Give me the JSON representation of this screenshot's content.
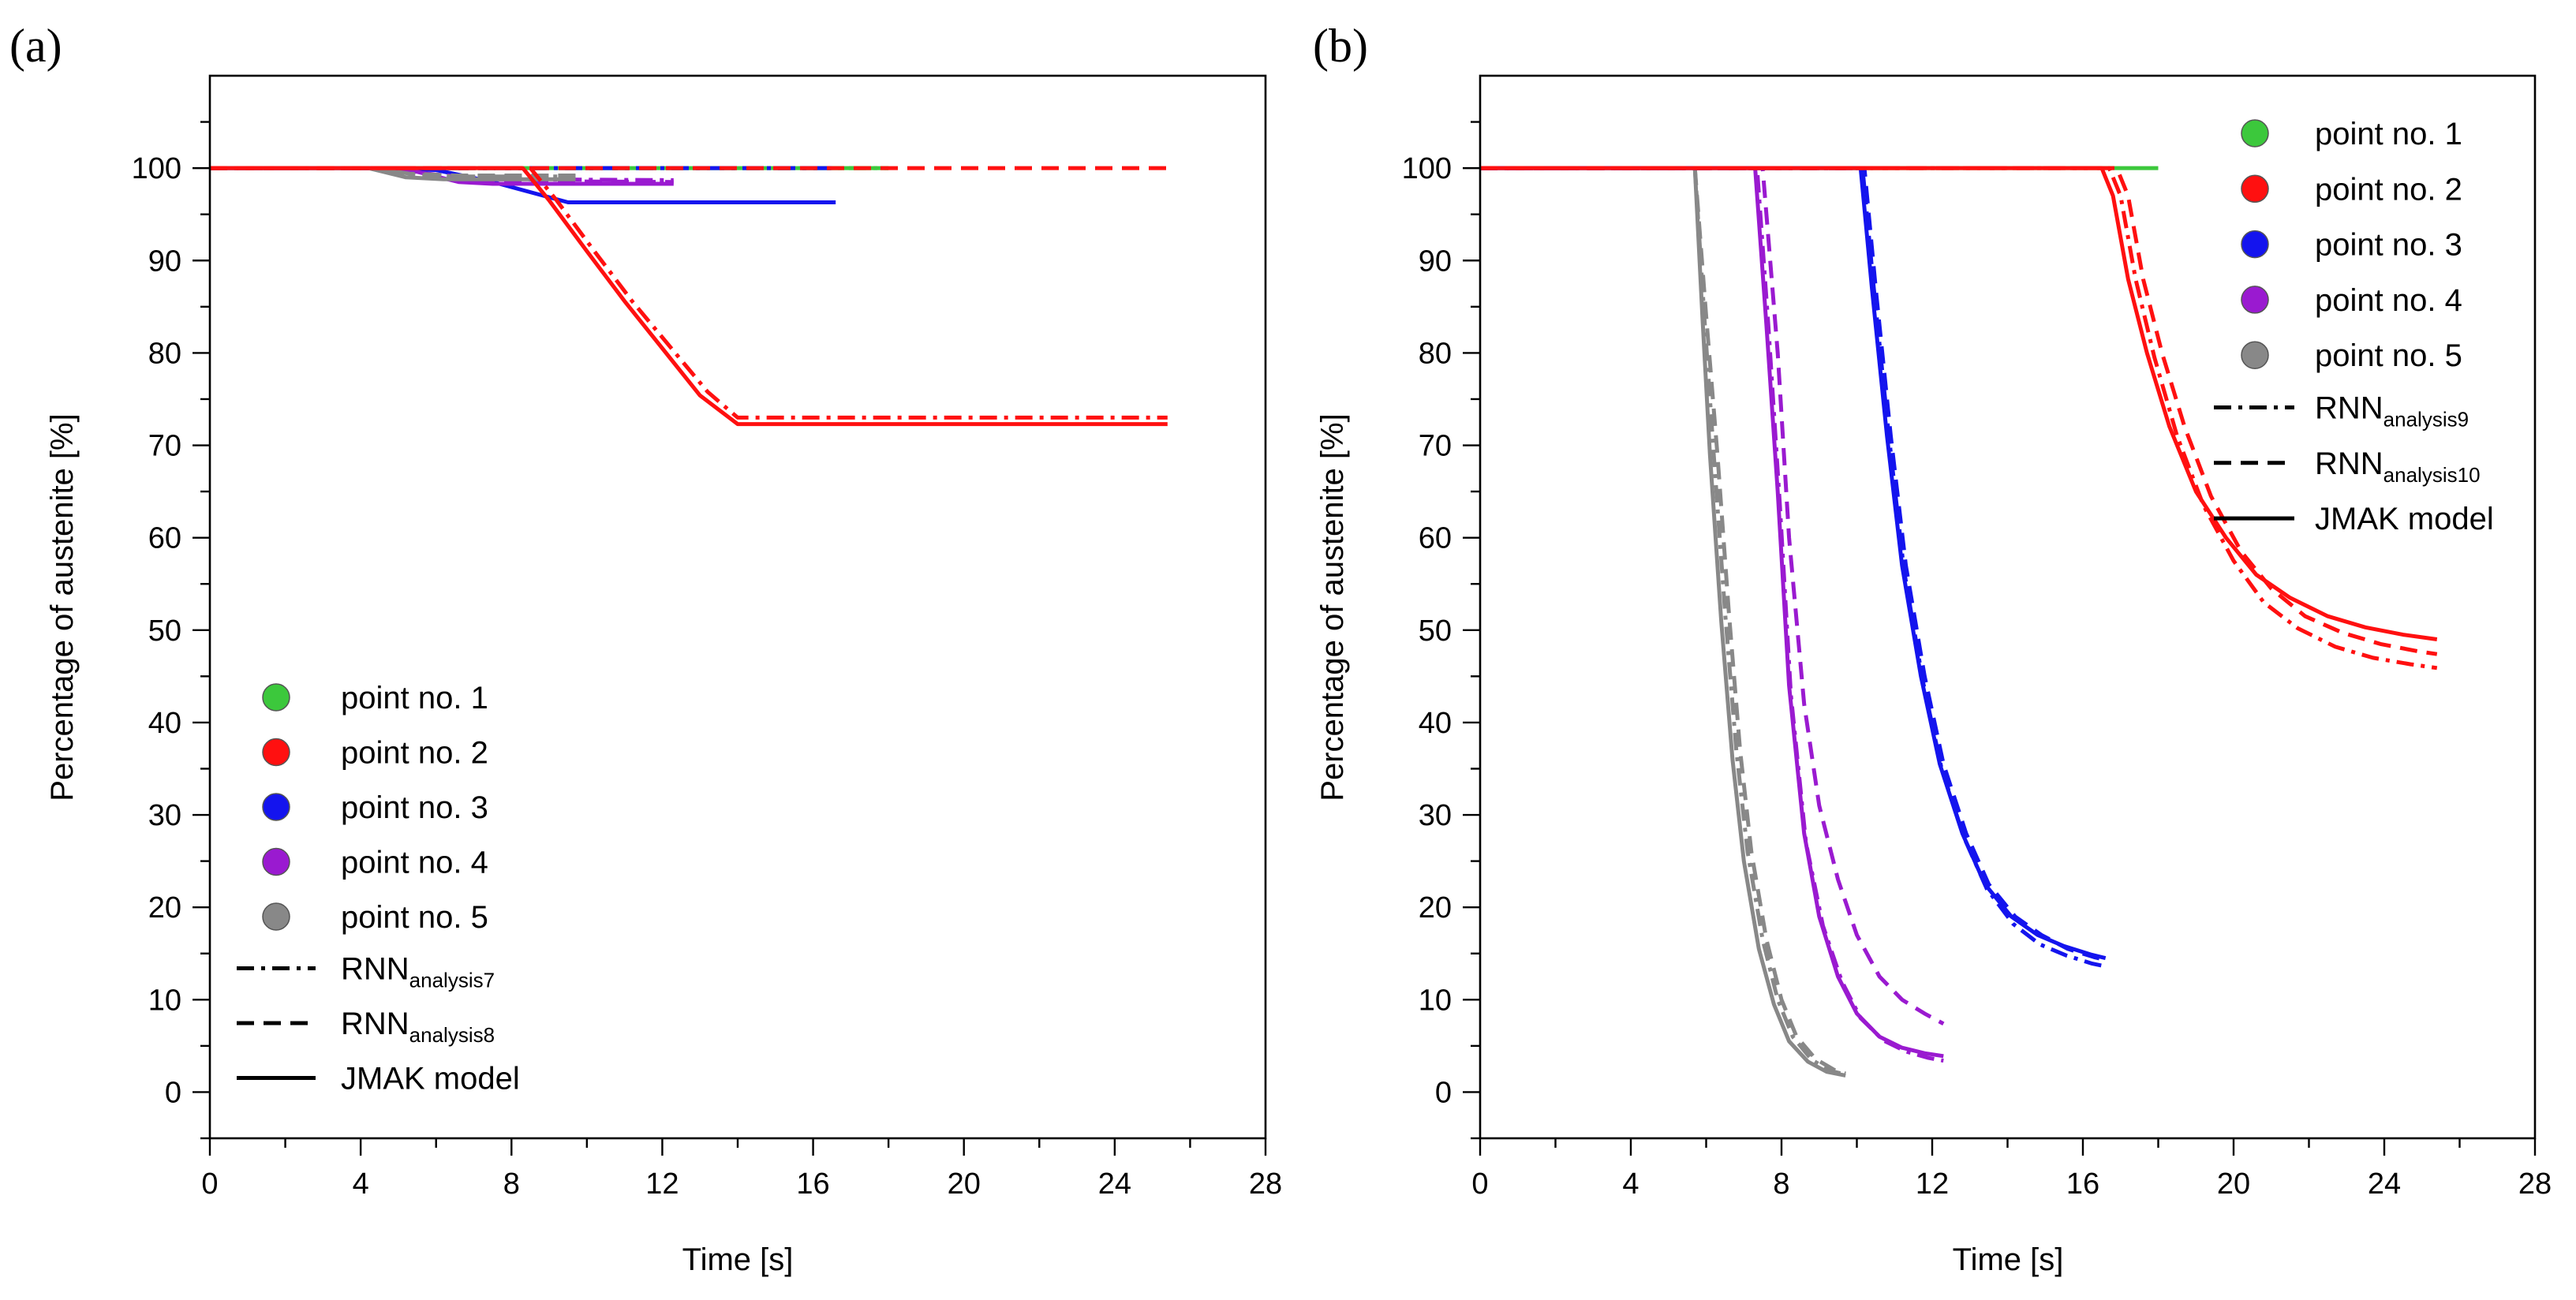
{
  "colors": {
    "point1": "#3cc83c",
    "point2": "#ff1010",
    "point3": "#1414ee",
    "point4": "#9a1ad0",
    "point5": "#888888",
    "axis": "#000000"
  },
  "chart_data": [
    {
      "id": "a",
      "type": "line",
      "panel_label": "(a)",
      "xlabel": "Time [s]",
      "ylabel": "Percentage of austenite [%]",
      "xlim": [
        0,
        28
      ],
      "ylim": [
        -5,
        110
      ],
      "xticks": [
        0,
        4,
        8,
        12,
        16,
        20,
        24,
        28
      ],
      "yticks": [
        0,
        10,
        20,
        30,
        40,
        50,
        60,
        70,
        80,
        90,
        100
      ],
      "legend": {
        "position": "lower-left",
        "points": [
          "point no. 1",
          "point no. 2",
          "point no. 3",
          "point no. 4",
          "point no. 5"
        ],
        "lines": [
          {
            "style": "dashdot",
            "base": "RNN",
            "sub": "analysis7"
          },
          {
            "style": "dashed",
            "base": "RNN",
            "sub": "analysis8"
          },
          {
            "style": "solid",
            "base": "JMAK model",
            "sub": ""
          }
        ]
      },
      "series": [
        {
          "name": "point no. 1 JMAK model",
          "point": "point1",
          "style": "solid",
          "x": [
            0,
            4,
            8,
            12,
            16,
            18
          ],
          "y": [
            100,
            100,
            100,
            100,
            100,
            100
          ]
        },
        {
          "name": "point no. 1 RNN analysis7",
          "point": "point1",
          "style": "dashdot",
          "x": [
            0,
            4,
            8,
            12,
            16,
            18
          ],
          "y": [
            100,
            100,
            100,
            100,
            100,
            100
          ]
        },
        {
          "name": "point no. 1 RNN analysis8",
          "point": "point1",
          "style": "dashed",
          "x": [
            0,
            4,
            8,
            12,
            16,
            18
          ],
          "y": [
            100,
            100,
            100,
            100,
            100,
            100
          ]
        },
        {
          "name": "point no. 3 JMAK model",
          "point": "point3",
          "style": "solid",
          "x": [
            0,
            4,
            6,
            7.5,
            9.5,
            16.6
          ],
          "y": [
            100,
            100,
            99.8,
            98.5,
            96.3,
            96.3
          ]
        },
        {
          "name": "point no. 3 RNN analysis7",
          "point": "point3",
          "style": "dashdot",
          "x": [
            0,
            4,
            8,
            12,
            16.5
          ],
          "y": [
            100,
            100,
            100,
            100,
            100
          ]
        },
        {
          "name": "point no. 3 RNN analysis8",
          "point": "point3",
          "style": "dashed",
          "x": [
            0,
            4,
            8,
            12,
            16.5
          ],
          "y": [
            100,
            100,
            100,
            100,
            100
          ]
        },
        {
          "name": "point no. 4 JMAK model",
          "point": "point4",
          "style": "solid",
          "x": [
            0,
            4.3,
            5.5,
            6.6,
            7.5,
            12.3
          ],
          "y": [
            100,
            100,
            99.6,
            98.5,
            98.3,
            98.3
          ]
        },
        {
          "name": "point no. 4 RNN analysis7",
          "point": "point4",
          "style": "dashdot",
          "x": [
            0,
            4.5,
            6,
            7.5,
            12.3
          ],
          "y": [
            100,
            100,
            99.3,
            98.8,
            98.7
          ]
        },
        {
          "name": "point no. 4 RNN analysis8",
          "point": "point4",
          "style": "dashed",
          "x": [
            0,
            4.5,
            6,
            7.5,
            12.3
          ],
          "y": [
            100,
            100,
            99.2,
            98.6,
            98.5
          ]
        },
        {
          "name": "point no. 5 JMAK model",
          "point": "point5",
          "style": "solid",
          "x": [
            0,
            4.2,
            5.2,
            6.2,
            7.2,
            9.7
          ],
          "y": [
            100,
            100,
            99,
            98.8,
            98.8,
            98.8
          ]
        },
        {
          "name": "point no. 5 RNN analysis7",
          "point": "point5",
          "style": "dashdot",
          "x": [
            0,
            4.3,
            5.3,
            6.5,
            9.7
          ],
          "y": [
            100,
            100,
            99.3,
            99.1,
            99.1
          ]
        },
        {
          "name": "point no. 5 RNN analysis8",
          "point": "point5",
          "style": "dashed",
          "x": [
            0,
            4.3,
            5.3,
            6.5,
            9.7
          ],
          "y": [
            100,
            100,
            99.4,
            99.2,
            99.2
          ]
        },
        {
          "name": "point no. 2 JMAK model",
          "point": "point2",
          "style": "solid",
          "x": [
            0,
            8.3,
            9,
            10,
            11,
            12,
            13,
            14,
            16,
            20,
            25.4
          ],
          "y": [
            100,
            100,
            96.5,
            91,
            85.6,
            80.5,
            75.4,
            72.3,
            72.3,
            72.3,
            72.3
          ]
        },
        {
          "name": "point no. 2 RNN analysis7",
          "point": "point2",
          "style": "dashdot",
          "x": [
            0,
            8.5,
            9.2,
            10.2,
            11.2,
            12.2,
            13.2,
            14,
            16,
            20,
            25.4
          ],
          "y": [
            100,
            100,
            96.5,
            91,
            85.6,
            80.7,
            75.8,
            73,
            73,
            73,
            73
          ]
        },
        {
          "name": "point no. 2 RNN analysis8",
          "point": "point2",
          "style": "dashed",
          "x": [
            0,
            8,
            12,
            16,
            20,
            25.4
          ],
          "y": [
            100,
            100,
            100,
            100,
            100,
            100
          ]
        }
      ]
    },
    {
      "id": "b",
      "type": "line",
      "panel_label": "(b)",
      "xlabel": "Time [s]",
      "ylabel": "Percentage of austenite [%]",
      "xlim": [
        0,
        28
      ],
      "ylim": [
        -5,
        110
      ],
      "xticks": [
        0,
        4,
        8,
        12,
        16,
        20,
        24,
        28
      ],
      "yticks": [
        0,
        10,
        20,
        30,
        40,
        50,
        60,
        70,
        80,
        90,
        100
      ],
      "legend": {
        "position": "top-right",
        "points": [
          "point no. 1",
          "point no. 2",
          "point no. 3",
          "point no. 4",
          "point no. 5"
        ],
        "lines": [
          {
            "style": "dashdot",
            "base": "RNN",
            "sub": "analysis9"
          },
          {
            "style": "dashed",
            "base": "RNN",
            "sub": "analysis10"
          },
          {
            "style": "solid",
            "base": "JMAK model",
            "sub": ""
          }
        ]
      },
      "series": [
        {
          "name": "point no. 1 JMAK model",
          "point": "point1",
          "style": "solid",
          "x": [
            0,
            4,
            8,
            12,
            16,
            18
          ],
          "y": [
            100,
            100,
            100,
            100,
            100,
            100
          ]
        },
        {
          "name": "point no. 5 JMAK model",
          "point": "point5",
          "style": "solid",
          "x": [
            0,
            5.7,
            5.9,
            6.1,
            6.4,
            6.7,
            7.0,
            7.4,
            7.8,
            8.2,
            8.7,
            9.2,
            9.7
          ],
          "y": [
            100,
            100,
            84,
            69,
            51,
            36,
            25,
            15.5,
            9.5,
            5.5,
            3.3,
            2.2,
            1.8
          ]
        },
        {
          "name": "point no. 5 RNN analysis9",
          "point": "point5",
          "style": "dashdot",
          "x": [
            0,
            5.7,
            5.95,
            6.2,
            6.5,
            6.8,
            7.1,
            7.5,
            7.9,
            8.3,
            8.8,
            9.3,
            9.7
          ],
          "y": [
            100,
            100,
            84,
            69,
            52,
            37,
            26,
            16.5,
            10,
            6,
            3.5,
            2.3,
            1.9
          ]
        },
        {
          "name": "point no. 5 RNN analysis10",
          "point": "point5",
          "style": "dashed",
          "x": [
            0,
            5.7,
            6.0,
            6.3,
            6.6,
            6.9,
            7.2,
            7.6,
            8.0,
            8.4,
            8.9,
            9.4,
            9.7
          ],
          "y": [
            100,
            100,
            84,
            69,
            52,
            37,
            26,
            16.5,
            10,
            6,
            3.6,
            2.4,
            2.0
          ]
        },
        {
          "name": "point no. 4 JMAK model",
          "point": "point4",
          "style": "solid",
          "x": [
            0,
            7.3,
            7.6,
            7.9,
            8.2,
            8.6,
            9.0,
            9.5,
            10.0,
            10.6,
            11.2,
            11.8,
            12.3
          ],
          "y": [
            100,
            100,
            83,
            65,
            44,
            28,
            19,
            12.5,
            8.5,
            6,
            4.8,
            4.2,
            3.9
          ]
        },
        {
          "name": "point no. 4 RNN analysis9",
          "point": "point4",
          "style": "dashdot",
          "x": [
            0,
            7.35,
            7.65,
            7.95,
            8.25,
            8.65,
            9.1,
            9.6,
            10.1,
            10.7,
            11.3,
            11.9,
            12.3
          ],
          "y": [
            100,
            100,
            83,
            64,
            43,
            27,
            18,
            12,
            8,
            5.6,
            4.4,
            3.7,
            3.4
          ]
        },
        {
          "name": "point no. 4 RNN analysis10",
          "point": "point4",
          "style": "dashed",
          "x": [
            0,
            7.5,
            7.9,
            8.2,
            8.6,
            9.0,
            9.5,
            10.0,
            10.6,
            11.2,
            11.8,
            12.3
          ],
          "y": [
            100,
            100,
            80,
            60,
            42,
            31,
            23,
            17,
            12.5,
            10,
            8.5,
            7.4
          ]
        },
        {
          "name": "point no. 3 JMAK model",
          "point": "point3",
          "style": "solid",
          "x": [
            0,
            10.1,
            10.4,
            10.8,
            11.2,
            11.7,
            12.2,
            12.8,
            13.4,
            14.1,
            14.8,
            15.5,
            16.2,
            16.6
          ],
          "y": [
            100,
            100,
            87,
            71,
            57,
            45,
            35.5,
            28,
            22.5,
            19,
            17,
            15.8,
            14.9,
            14.5
          ]
        },
        {
          "name": "point no. 3 RNN analysis9",
          "point": "point3",
          "style": "dashdot",
          "x": [
            0,
            10.15,
            10.45,
            10.85,
            11.25,
            11.75,
            12.25,
            12.85,
            13.45,
            14.15,
            14.85,
            15.55,
            16.25,
            16.6
          ],
          "y": [
            100,
            100,
            87,
            71,
            56.5,
            44.5,
            35,
            27.5,
            22,
            18.2,
            16,
            14.8,
            13.9,
            13.6
          ]
        },
        {
          "name": "point no. 3 RNN analysis10",
          "point": "point3",
          "style": "dashed",
          "x": [
            0,
            10.2,
            10.5,
            10.9,
            11.3,
            11.8,
            12.3,
            12.9,
            13.5,
            14.2,
            14.9,
            15.6,
            16.3,
            16.6
          ],
          "y": [
            100,
            100,
            87,
            71,
            57,
            45,
            35.5,
            28,
            22.5,
            19,
            17,
            15.5,
            14.6,
            14.3
          ]
        },
        {
          "name": "point no. 2 JMAK model",
          "point": "point2",
          "style": "solid",
          "x": [
            0,
            16.5,
            16.8,
            17.2,
            17.7,
            18.3,
            19.0,
            19.8,
            20.6,
            21.5,
            22.5,
            23.5,
            24.5,
            25.4
          ],
          "y": [
            100,
            100,
            97,
            88,
            80,
            72,
            65,
            60,
            56,
            53.5,
            51.5,
            50.3,
            49.5,
            49
          ]
        },
        {
          "name": "point no. 2 RNN analysis9",
          "point": "point2",
          "style": "dashdot",
          "x": [
            0,
            16.7,
            17.0,
            17.4,
            17.9,
            18.5,
            19.2,
            20.0,
            20.8,
            21.7,
            22.7,
            23.7,
            24.7,
            25.4
          ],
          "y": [
            100,
            100,
            97,
            88,
            79.5,
            71,
            63.5,
            57.5,
            53,
            50.2,
            48.2,
            47,
            46.3,
            45.9
          ]
        },
        {
          "name": "point no. 2 RNN analysis10",
          "point": "point2",
          "style": "dashed",
          "x": [
            0,
            16.9,
            17.2,
            17.6,
            18.1,
            18.7,
            19.4,
            20.2,
            21.0,
            21.9,
            22.9,
            23.9,
            24.9,
            25.4
          ],
          "y": [
            100,
            100,
            97,
            88,
            80,
            72,
            64.5,
            58.5,
            54.5,
            51.5,
            49.7,
            48.5,
            47.7,
            47.4
          ]
        }
      ]
    }
  ]
}
